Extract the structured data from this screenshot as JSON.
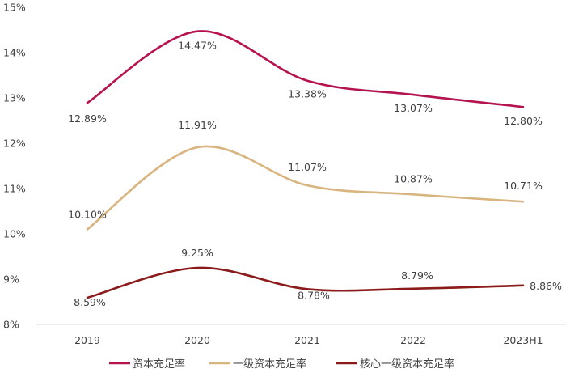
{
  "chart_data": {
    "type": "line",
    "categories": [
      "2019",
      "2020",
      "2021",
      "2022",
      "2023H1"
    ],
    "ylim": [
      8,
      15
    ],
    "y_ticks": [
      "8%",
      "9%",
      "10%",
      "11%",
      "12%",
      "13%",
      "14%",
      "15%"
    ],
    "grid": false,
    "smooth": true,
    "legend_position": "bottom",
    "series": [
      {
        "name": "资本充足率",
        "color": "#B5134F",
        "values": [
          12.89,
          14.47,
          13.38,
          13.07,
          12.8
        ],
        "labels": [
          "12.89%",
          "14.47%",
          "13.38%",
          "13.07%",
          "12.80%"
        ]
      },
      {
        "name": "一级资本充足率",
        "color": "#D8B47F",
        "values": [
          10.1,
          11.91,
          11.07,
          10.87,
          10.71
        ],
        "labels": [
          "10.10%",
          "11.91%",
          "11.07%",
          "10.87%",
          "10.71%"
        ]
      },
      {
        "name": "核心一级资本充足率",
        "color": "#8B1A1A",
        "values": [
          8.59,
          9.25,
          8.78,
          8.79,
          8.86
        ],
        "labels": [
          "8.59%",
          "9.25%",
          "8.78%",
          "8.79%",
          "8.86%"
        ]
      }
    ]
  }
}
